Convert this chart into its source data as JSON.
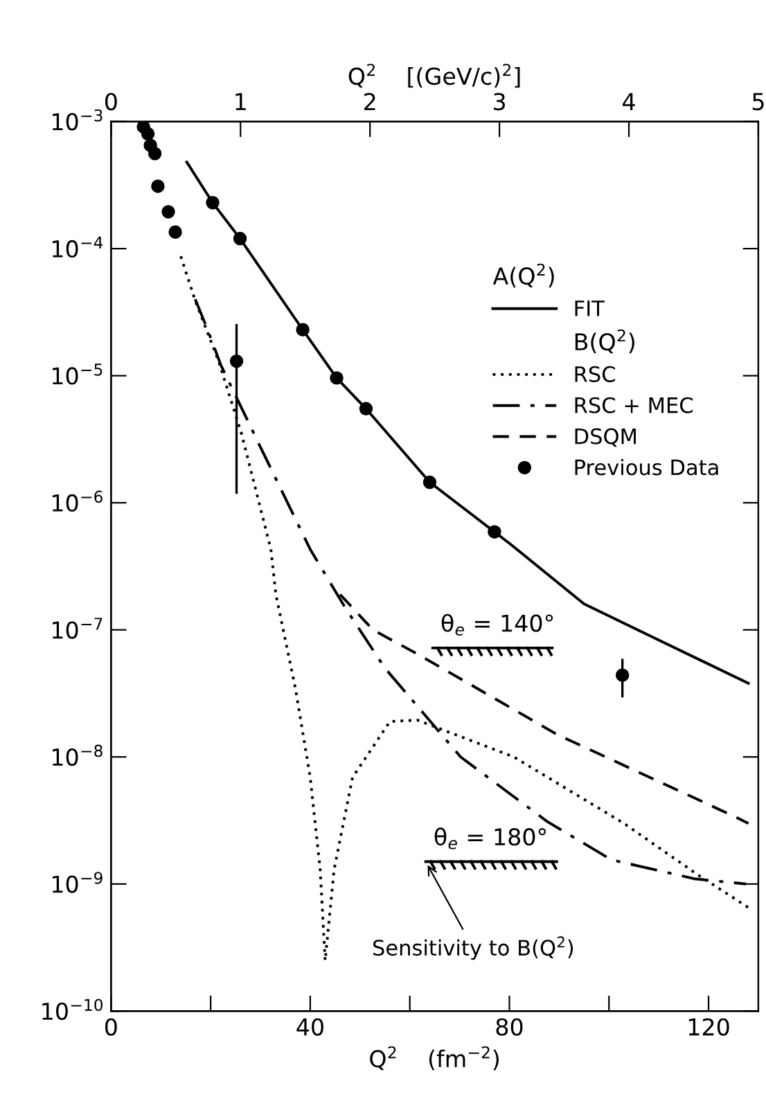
{
  "chart_data": {
    "type": "line",
    "xlabel": "Q$^{2}$    (fm$^{−2}$)",
    "x2label": "Q$^{2}$    [(GeV/c)$^{2}$]",
    "legend_title": "A(Q$^{2}$)",
    "log": "y",
    "xlim": [
      0,
      130
    ],
    "xticks": [
      0,
      {
        "value": 20,
        "label": null
      },
      40,
      {
        "value": 60,
        "label": null
      },
      80,
      {
        "value": 100,
        "label": null
      },
      120
    ],
    "x2lim": [
      0,
      5
    ],
    "x2ticks": [
      0,
      1,
      2,
      3,
      4,
      5
    ],
    "ylim": [
      1e-10,
      0.001
    ],
    "yticks": [
      {
        "value": 1e-10,
        "label": "10$^{−10}$"
      },
      {
        "value": 1e-09,
        "label": "10$^{−9}$"
      },
      {
        "value": 1e-08,
        "label": "10$^{−8}$"
      },
      {
        "value": 1e-07,
        "label": "10$^{−7}$"
      },
      {
        "value": 1e-06,
        "label": "10$^{−6}$"
      },
      {
        "value": 1e-05,
        "label": "10$^{−5}$"
      },
      {
        "value": 0.0001,
        "label": "10$^{−4}$"
      },
      {
        "value": 0.001,
        "label": "10$^{−3}$"
      }
    ],
    "grid": false,
    "legend": "top right",
    "series": [
      {
        "name": "FIT",
        "color": "#000000",
        "line_style": "solid",
        "x": [
          15.2,
          20.4,
          25.9,
          38.5,
          45.3,
          51.2,
          64,
          80,
          95,
          110,
          128
        ],
        "values": [
          0.00048,
          0.00023,
          0.00012,
          2.3e-05,
          9.6e-06,
          5.5e-06,
          1.45e-06,
          4.8e-07,
          1.6e-07,
          8.3e-08,
          3.8e-08
        ]
      },
      {
        "name": "RSC",
        "color": "#000000",
        "line_style": "dotted",
        "x": [
          14.0,
          16.9,
          21.6,
          26.2,
          32.1,
          33.1,
          37.0,
          40.0,
          42.0,
          43.0,
          44.8,
          48.5,
          56.0,
          61.5,
          80.9,
          103,
          117.6,
          128.6
        ],
        "values": [
          8.7e-05,
          3.9e-05,
          1.3e-05,
          3.5e-06,
          4.3e-07,
          1.9e-07,
          3.5e-08,
          6.9e-09,
          1.3e-09,
          2.5e-10,
          1.3e-09,
          6.9e-09,
          1.9e-08,
          1.95e-08,
          1e-08,
          3e-09,
          1.2e-09,
          6.3e-10
        ]
      },
      {
        "name": "RSC + MEC",
        "color": "#000000",
        "line_style": "dashdot",
        "x": [
          16.9,
          19.3,
          22.1,
          29.7,
          40.0,
          47,
          55,
          70.2,
          87.6,
          100.5,
          117.1,
          127.5
        ],
        "values": [
          4e-05,
          2.35e-05,
          1.2e-05,
          2.9e-06,
          4.3e-07,
          1.5e-07,
          5e-08,
          1e-08,
          3.1e-09,
          1.55e-09,
          1.1e-09,
          1e-09
        ]
      },
      {
        "name": "DSQM",
        "color": "#000000",
        "line_style": "dashed",
        "x": [
          46,
          52.6,
          62,
          89.6,
          124.5,
          128
        ],
        "values": [
          1.9e-07,
          1e-07,
          6.3e-08,
          1.5e-08,
          3.5e-09,
          3e-09
        ]
      },
      {
        "name": "Previous Data",
        "color": "#000000",
        "type": "scatter",
        "marker": "circle",
        "x": [
          6.5,
          7.4,
          7.9,
          8.8,
          9.4,
          11.5,
          12.9,
          20.4,
          25.9,
          25.2,
          38.5,
          45.3,
          51.2,
          64.0,
          77.0,
          102.7
        ],
        "values": [
          0.00091,
          0.0008,
          0.00065,
          0.00056,
          0.00031,
          0.000195,
          0.000135,
          0.00023,
          0.00012,
          1.3e-05,
          2.3e-05,
          9.6e-06,
          5.5e-06,
          1.45e-06,
          5.9e-07,
          4.4e-08
        ],
        "errors": [
          null,
          null,
          null,
          null,
          null,
          null,
          null,
          null,
          null,
          [
            1.2e-06,
            2.5e-05
          ],
          null,
          null,
          null,
          null,
          null,
          [
            3e-08,
            5.8e-08
          ]
        ]
      },
      {
        "color": "#000000",
        "line_style": "solid",
        "x": [
          64.6,
          88.6
        ],
        "values": [
          7.2e-08,
          7.2e-08
        ]
      },
      {
        "color": "#000000",
        "line_style": "solid",
        "x": [
          63.2,
          89.5
        ],
        "values": [
          1.5e-09,
          1.5e-09
        ]
      }
    ],
    "annotations": [
      "B(Q$^{2}$)",
      "θ$_{e}$ = 140°",
      "θ$_{e}$ = 180°",
      {
        "text": "Sensitivity to B(Q$^{2}$)",
        "x": 63.2,
        "y": 1.5e-09
      }
    ]
  }
}
